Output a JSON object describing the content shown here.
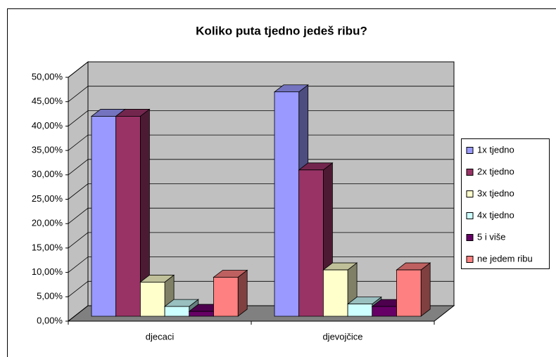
{
  "chart_data": {
    "type": "bar3d",
    "title": "Koliko puta tjedno jedeš ribu?",
    "categories": [
      "djecaci",
      "djevojčice"
    ],
    "series": [
      {
        "name": "1x tjedno",
        "color": "#9999ff",
        "values": [
          41,
          46
        ]
      },
      {
        "name": "2x tjedno",
        "color": "#993366",
        "values": [
          41,
          30
        ]
      },
      {
        "name": "3x tjedno",
        "color": "#ffffcc",
        "values": [
          7,
          9.5
        ]
      },
      {
        "name": "4x tjedno",
        "color": "#ccffff",
        "values": [
          2,
          2.5
        ]
      },
      {
        "name": "5 i više",
        "color": "#660066",
        "values": [
          1,
          2
        ]
      },
      {
        "name": "ne jedem ribu",
        "color": "#ff8080",
        "values": [
          8,
          9.5
        ]
      }
    ],
    "ylim": [
      0,
      50
    ],
    "yticks": [
      {
        "value": 0,
        "label": "0,00%"
      },
      {
        "value": 5,
        "label": "5,00%"
      },
      {
        "value": 10,
        "label": "10,00%"
      },
      {
        "value": 15,
        "label": "15,00%"
      },
      {
        "value": 20,
        "label": "20,00%"
      },
      {
        "value": 25,
        "label": "25,00%"
      },
      {
        "value": 30,
        "label": "30,00%"
      },
      {
        "value": 35,
        "label": "35,00%"
      },
      {
        "value": 40,
        "label": "40,00%"
      },
      {
        "value": 45,
        "label": "45,00%"
      },
      {
        "value": 50,
        "label": "50,00%"
      }
    ],
    "grid": true,
    "legend": "right"
  }
}
